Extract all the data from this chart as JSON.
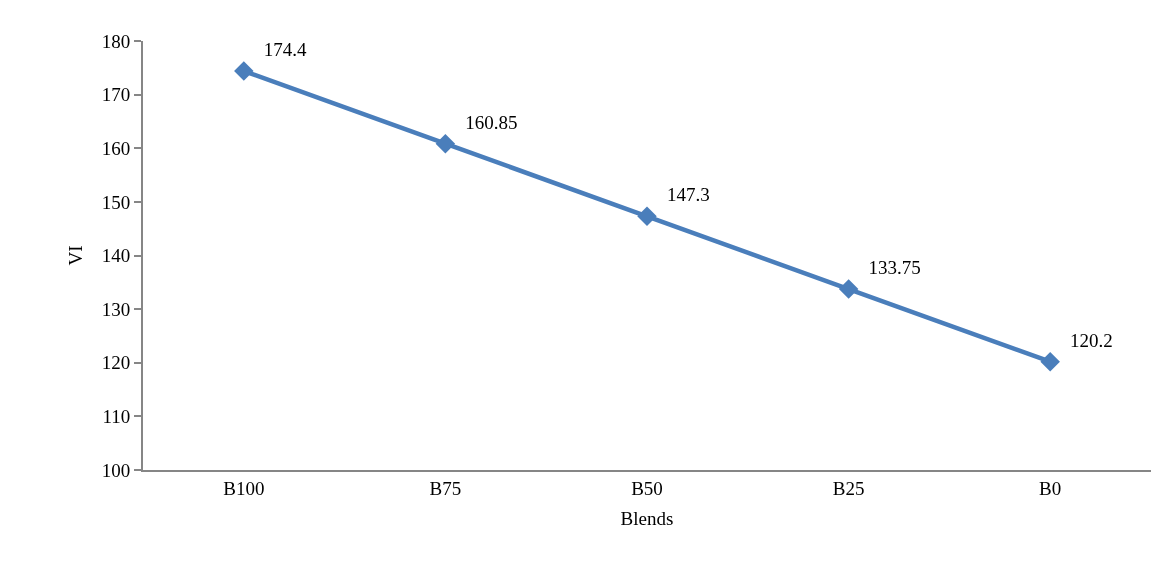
{
  "chart_data": {
    "type": "line",
    "xlabel": "Blends",
    "ylabel": "VI",
    "categories": [
      "B100",
      "B75",
      "B50",
      "B25",
      "B0"
    ],
    "series": [
      {
        "color": "#4a7ebb",
        "values": [
          174.4,
          160.85,
          147.3,
          133.75,
          120.2
        ]
      }
    ],
    "ylim": [
      100,
      180
    ],
    "yticks": [
      100,
      110,
      120,
      130,
      140,
      150,
      160,
      170,
      180
    ],
    "data_labels": true,
    "marker": "diamond",
    "line_style": "solid"
  }
}
